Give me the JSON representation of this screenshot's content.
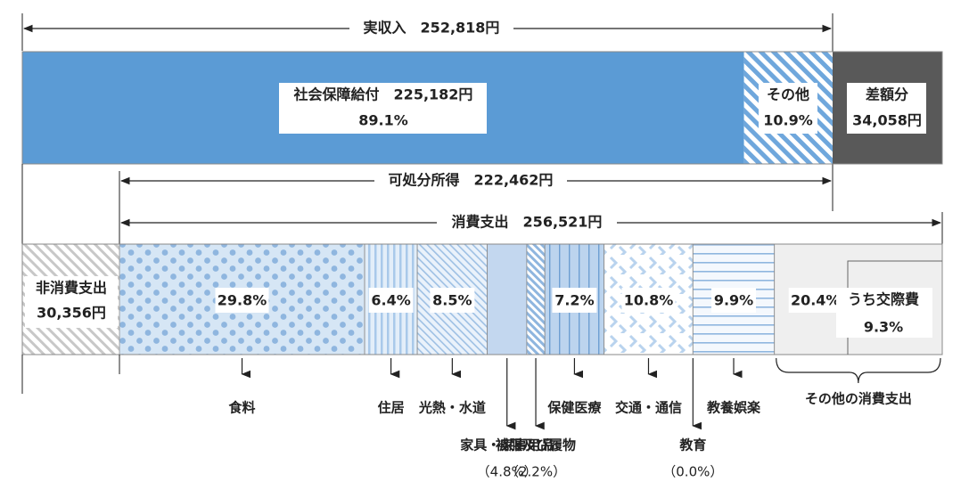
{
  "chart_data": {
    "type": "bar",
    "subtype": "stacked-horizontal-breakdown",
    "currency_unit": "円",
    "income_bar": {
      "span_label": "実収入　252,818円",
      "total": 252818,
      "segments": [
        {
          "key": "social",
          "name": "社会保障給付",
          "line1": "社会保障給付　225,182円",
          "line2": "89.1%",
          "value": 225182,
          "percent": 89.1,
          "color": "#5b9bd5"
        },
        {
          "key": "other",
          "name": "その他",
          "line1": "その他",
          "line2": "10.9%",
          "value": 27636,
          "percent": 10.9,
          "color": "#9dc3e6",
          "pattern": "diagonal-stripes"
        },
        {
          "key": "deficit",
          "name": "差額分",
          "line1": "差額分",
          "line2": "34,058円",
          "value": 34058,
          "color": "#595959"
        }
      ]
    },
    "disposable_label": "可処分所得　222,462円",
    "disposable_income": 222462,
    "consumption_label": "消費支出　256,521円",
    "consumption_total": 256521,
    "expenditure_bar": {
      "non_consumption": {
        "line1": "非消費支出",
        "line2": "30,356円",
        "value": 30356
      },
      "categories": [
        {
          "key": "food",
          "name": "食料",
          "percent": 29.8,
          "label": "29.8%",
          "pattern": "dots"
        },
        {
          "key": "housing",
          "name": "住居",
          "percent": 6.4,
          "label": "6.4%",
          "pattern": "vertical-stripes"
        },
        {
          "key": "utilities",
          "name": "光熱・水道",
          "percent": 8.5,
          "label": "8.5%",
          "pattern": "diagonal-fine"
        },
        {
          "key": "furniture",
          "name": "家具・家事用品",
          "percent": 4.8,
          "label": "",
          "pattern": "solid"
        },
        {
          "key": "clothing",
          "name": "被服及び履物",
          "percent": 2.2,
          "label": "",
          "pattern": "diagonal-dense"
        },
        {
          "key": "health",
          "name": "保健医療",
          "percent": 7.2,
          "label": "7.2%",
          "pattern": "vertical-lines"
        },
        {
          "key": "transport",
          "name": "交通・通信",
          "percent": 10.8,
          "label": "10.8%",
          "pattern": "chevrons"
        },
        {
          "key": "education",
          "name": "教育",
          "percent": 0.0,
          "label": "",
          "pattern": "none"
        },
        {
          "key": "recreation",
          "name": "教養娯楽",
          "percent": 9.9,
          "label": "9.9%",
          "pattern": "horizontal-lines"
        },
        {
          "key": "other_consumption",
          "name": "その他の消費支出",
          "percent": 20.4,
          "label": "20.4%",
          "pattern": "light-gray"
        }
      ],
      "inner_box": {
        "line1": "うち交際費",
        "line2": "9.3%",
        "percent": 9.3
      }
    },
    "bottom_labels": {
      "food": "食料",
      "housing": "住居",
      "utilities": "光熱・水道",
      "furniture": "家具・家事用品",
      "furniture_pct": "（4.8%）",
      "clothing": "被服及び履物",
      "clothing_pct": "（2.2%）",
      "health": "保健医療",
      "transport": "交通・通信",
      "education": "教育",
      "education_pct": "（0.0%）",
      "recreation": "教養娯楽",
      "other": "その他の消費支出"
    }
  }
}
